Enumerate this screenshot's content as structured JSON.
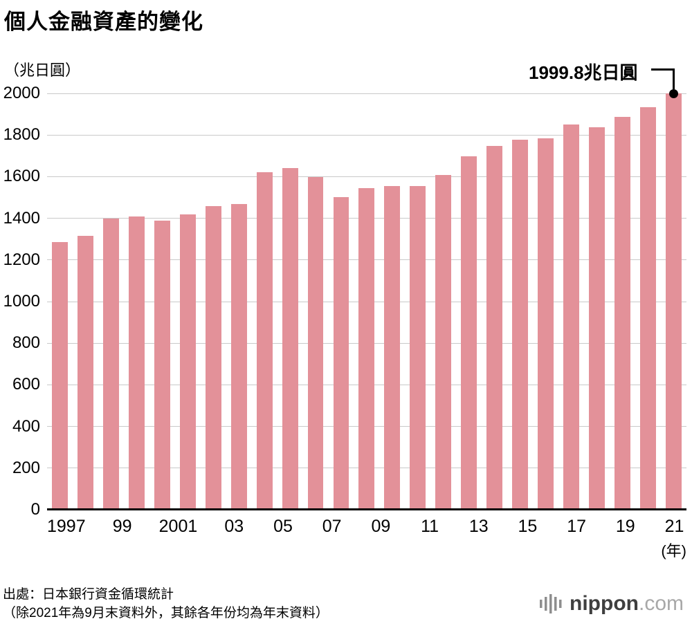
{
  "title": "個人金融資產的變化",
  "y_unit_label": "（兆日圓）",
  "annotation_label": "1999.8兆日圓",
  "year_suffix": "(年)",
  "source_line1": "出處：日本銀行資金循環統計",
  "source_line2": "（除2021年為9月末資料外，其餘各年份均為年末資料）",
  "logo": {
    "name": "nippon",
    "domain": ".com"
  },
  "chart_data": {
    "type": "bar",
    "title": "個人金融資產的變化",
    "ylabel": "（兆日圓）",
    "xlabel": "年",
    "ylim": [
      0,
      2000
    ],
    "ytick_step": 200,
    "grid": true,
    "bar_color": "#e39199",
    "categories": [
      1997,
      1998,
      1999,
      2000,
      2001,
      2002,
      2003,
      2004,
      2005,
      2006,
      2007,
      2008,
      2009,
      2010,
      2011,
      2012,
      2013,
      2014,
      2015,
      2016,
      2017,
      2018,
      2019,
      2020,
      2021
    ],
    "values": [
      1285,
      1315,
      1400,
      1410,
      1390,
      1420,
      1458,
      1470,
      1620,
      1642,
      1598,
      1503,
      1545,
      1556,
      1556,
      1608,
      1698,
      1748,
      1778,
      1785,
      1852,
      1838,
      1888,
      1935,
      1999.8
    ],
    "tick_labels": [
      "1997",
      "99",
      "2001",
      "03",
      "05",
      "07",
      "09",
      "11",
      "13",
      "15",
      "17",
      "19",
      "21"
    ],
    "annotation": {
      "text": "1999.8兆日圓",
      "target_year": 2021,
      "value": 1999.8
    }
  }
}
